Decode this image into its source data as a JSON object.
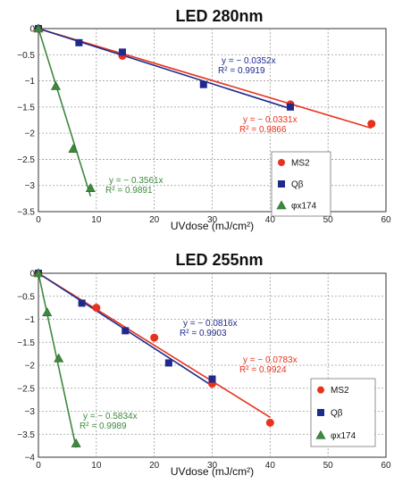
{
  "chart_data": [
    {
      "type": "scatter",
      "title": "LED 280nm",
      "xlabel": "UVdose (mJ/cm²)",
      "ylabel": "",
      "xlim": [
        0,
        60
      ],
      "ylim": [
        -3.5,
        0
      ],
      "xticks": [
        0,
        10,
        20,
        30,
        40,
        50,
        60
      ],
      "yticks": [
        0,
        -0.5,
        -1,
        -1.5,
        -2,
        -2.5,
        -3,
        -3.5
      ],
      "grid": true,
      "legend_position": "bottom-right",
      "series": [
        {
          "name": "MS2",
          "marker": "circle",
          "color": "#e8321e",
          "x": [
            0,
            14.5,
            43.5,
            57.5
          ],
          "y": [
            0,
            -0.52,
            -1.45,
            -1.82
          ],
          "fit": {
            "slope": -0.0331,
            "equation": "y = − 0.0331x",
            "r2": "R² = 0.9866"
          }
        },
        {
          "name": "Qβ",
          "marker": "square",
          "color": "#1e2a8c",
          "x": [
            0,
            7,
            14.5,
            28.5,
            43.5
          ],
          "y": [
            0,
            -0.27,
            -0.45,
            -1.07,
            -1.5
          ],
          "fit": {
            "slope": -0.0352,
            "equation": "y = − 0.0352x",
            "r2": "R² = 0.9919"
          }
        },
        {
          "name": "φx174",
          "marker": "triangle",
          "color": "#3c8a3c",
          "x": [
            0,
            3,
            6,
            9
          ],
          "y": [
            0,
            -1.1,
            -2.3,
            -3.05
          ],
          "fit": {
            "slope": -0.3561,
            "equation": "y = − 0.3561x",
            "r2": "R² = 0.9891"
          }
        }
      ]
    },
    {
      "type": "scatter",
      "title": "LED 255nm",
      "xlabel": "UVdose (mJ/cm²)",
      "ylabel": "",
      "xlim": [
        0,
        60
      ],
      "ylim": [
        -4,
        0
      ],
      "xticks": [
        0,
        10,
        20,
        30,
        40,
        50,
        60
      ],
      "yticks": [
        0,
        -0.5,
        -1,
        -1.5,
        -2,
        -2.5,
        -3,
        -3.5,
        -4
      ],
      "grid": true,
      "legend_position": "bottom-right",
      "series": [
        {
          "name": "MS2",
          "marker": "circle",
          "color": "#e8321e",
          "x": [
            0,
            10,
            20,
            30,
            40
          ],
          "y": [
            0,
            -0.75,
            -1.4,
            -2.4,
            -3.25
          ],
          "fit": {
            "slope": -0.0783,
            "equation": "y = − 0.0783x",
            "r2": "R² = 0.9924"
          }
        },
        {
          "name": "Qβ",
          "marker": "square",
          "color": "#1e2a8c",
          "x": [
            0,
            7.5,
            15,
            22.5,
            30
          ],
          "y": [
            0,
            -0.65,
            -1.25,
            -1.95,
            -2.3
          ],
          "fit": {
            "slope": -0.0816,
            "equation": "y = − 0.0816x",
            "r2": "R² = 0.9903"
          }
        },
        {
          "name": "φx174",
          "marker": "triangle",
          "color": "#3c8a3c",
          "x": [
            0,
            1.5,
            3.5,
            6.5
          ],
          "y": [
            0,
            -0.85,
            -1.85,
            -3.7
          ],
          "fit": {
            "slope": -0.5834,
            "equation": "y = − 0.5834x",
            "r2": "R² = 0.9989"
          }
        }
      ]
    }
  ]
}
